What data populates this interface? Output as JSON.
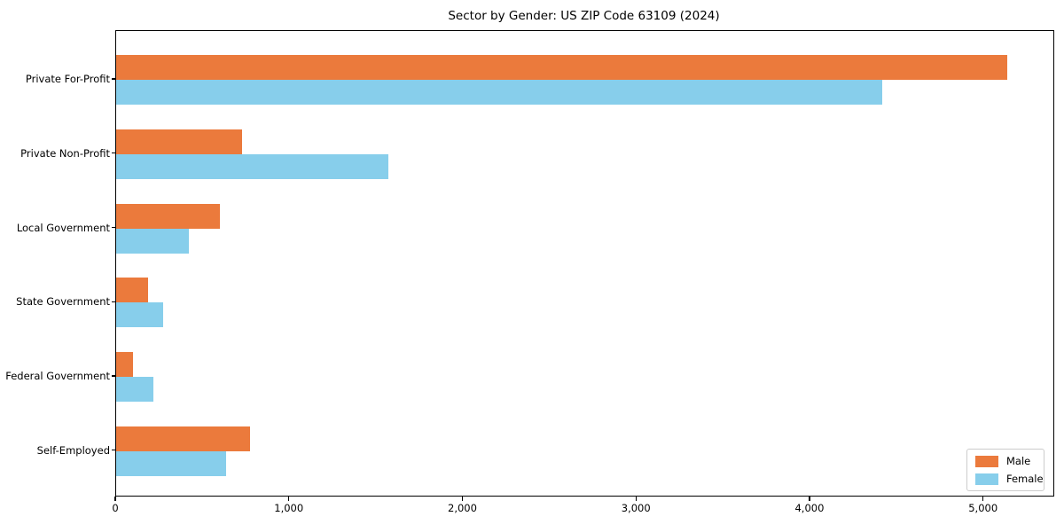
{
  "title": "Sector by Gender: US ZIP Code 63109 (2024)",
  "chart_data": {
    "type": "bar",
    "orientation": "horizontal",
    "title": "Sector by Gender: US ZIP Code 63109 (2024)",
    "xlabel": "",
    "ylabel": "",
    "categories": [
      "Private For-Profit",
      "Private Non-Profit",
      "Local Government",
      "State Government",
      "Federal Government",
      "Self-Employed"
    ],
    "series": [
      {
        "name": "Male",
        "color": "#EB7A3C",
        "values": [
          5135,
          725,
          595,
          185,
          95,
          770
        ]
      },
      {
        "name": "Female",
        "color": "#87CEEB",
        "values": [
          4415,
          1570,
          420,
          270,
          215,
          635
        ]
      }
    ],
    "xlim": [
      0,
      5400
    ],
    "xtick_values": [
      0,
      1000,
      2000,
      3000,
      4000,
      5000
    ],
    "xtick_labels": [
      "0",
      "1,000",
      "2,000",
      "3,000",
      "4,000",
      "5,000"
    ],
    "grid": false,
    "legend_position": "lower right",
    "background_color": "#ffffff",
    "spine_color": "#000000"
  },
  "legend": {
    "items": [
      {
        "label": "Male",
        "color": "#EB7A3C"
      },
      {
        "label": "Female",
        "color": "#87CEEB"
      }
    ]
  }
}
